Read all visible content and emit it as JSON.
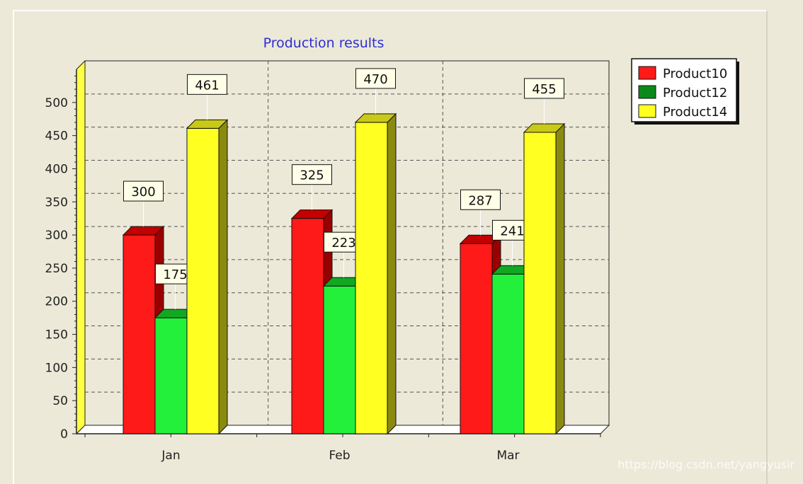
{
  "chart_data": {
    "type": "bar",
    "title": "Production results",
    "categories": [
      "Jan",
      "Feb",
      "Mar"
    ],
    "series": [
      {
        "name": "Product10",
        "values": [
          300,
          325,
          287
        ],
        "color": "#ff1a1a",
        "side": "#9a0000",
        "top": "#c40000"
      },
      {
        "name": "Product12",
        "values": [
          175,
          223,
          241
        ],
        "color": "#22f03a",
        "side": "#0b7a16",
        "top": "#13a823"
      },
      {
        "name": "Product14",
        "values": [
          461,
          470,
          455
        ],
        "color": "#ffff22",
        "side": "#8a8a10",
        "top": "#c9c91a"
      }
    ],
    "ylim": [
      0,
      550
    ],
    "yticks": [
      0,
      50,
      100,
      150,
      200,
      250,
      300,
      350,
      400,
      450,
      500
    ],
    "grid": true,
    "legend": "top-right",
    "legend_colors": [
      "#ff1a1a",
      "#0a8a1a",
      "#ffff22"
    ]
  },
  "watermark": "https://blog.csdn.net/yangyusir"
}
